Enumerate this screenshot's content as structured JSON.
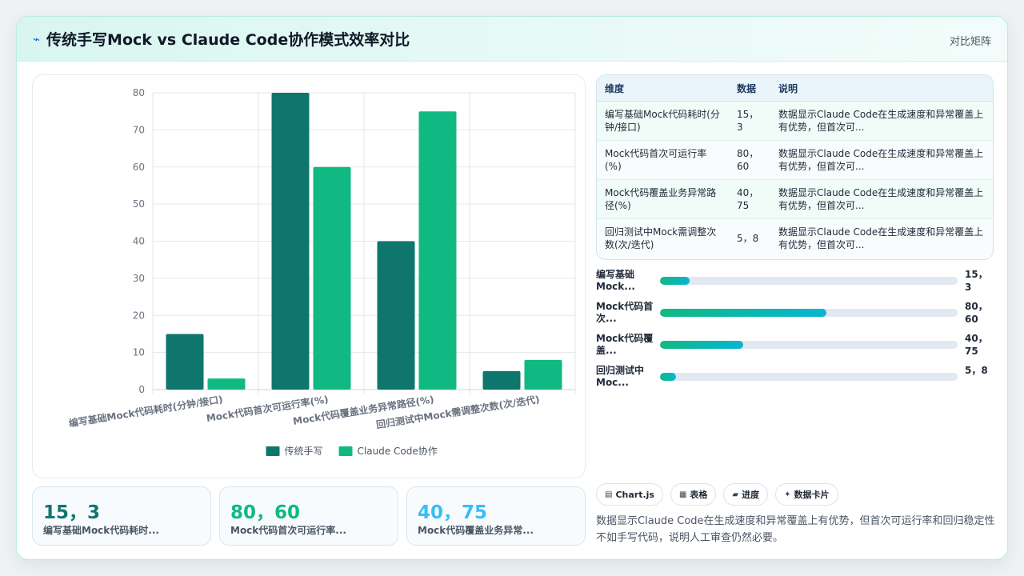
{
  "header": {
    "title": "传统手写Mock vs Claude Code协作模式效率对比",
    "right_label": "对比矩阵"
  },
  "chart_data": {
    "type": "bar",
    "categories": [
      "编写基础Mock代码耗时(分钟/接口)",
      "Mock代码首次可运行率(%)",
      "Mock代码覆盖业务异常路径(%)",
      "回归测试中Mock需调整次数(次/迭代)"
    ],
    "series": [
      {
        "name": "传统手写",
        "values": [
          15,
          80,
          40,
          5
        ],
        "color": "#0f766e"
      },
      {
        "name": "Claude Code协作",
        "values": [
          3,
          60,
          75,
          8
        ],
        "color": "#10b981"
      }
    ],
    "ylim": [
      0,
      80
    ],
    "yticks": [
      0,
      10,
      20,
      30,
      40,
      50,
      60,
      70,
      80
    ],
    "grid": true,
    "legend": "bottom"
  },
  "table": {
    "headers": [
      "维度",
      "数据",
      "说明"
    ],
    "rows": [
      {
        "dim": "编写基础Mock代码耗时(分钟/接口)",
        "val": "15，3",
        "desc": "数据显示Claude Code在生成速度和异常覆盖上有优势，但首次可..."
      },
      {
        "dim": "Mock代码首次可运行率(%)",
        "val": "80，60",
        "desc": "数据显示Claude Code在生成速度和异常覆盖上有优势，但首次可..."
      },
      {
        "dim": "Mock代码覆盖业务异常路径(%)",
        "val": "40，75",
        "desc": "数据显示Claude Code在生成速度和异常覆盖上有优势，但首次可..."
      },
      {
        "dim": "回归测试中Mock需调整次数(次/迭代)",
        "val": "5，8",
        "desc": "数据显示Claude Code在生成速度和异常覆盖上有优势，但首次可..."
      }
    ]
  },
  "progress": [
    {
      "label": "编写基础Mock...",
      "value": "15，3",
      "fill": 0.1
    },
    {
      "label": "Mock代码首次...",
      "value": "80，60",
      "fill": 0.56
    },
    {
      "label": "Mock代码覆盖...",
      "value": "40，75",
      "fill": 0.28
    },
    {
      "label": "回归测试中Moc...",
      "value": "5，8",
      "fill": 0.055
    }
  ],
  "stats": [
    {
      "value": "15，3",
      "label": "编写基础Mock代码耗时...",
      "color": "#0f766e"
    },
    {
      "value": "80，60",
      "label": "Mock代码首次可运行率...",
      "color": "#10b981"
    },
    {
      "value": "40，75",
      "label": "Mock代码覆盖业务异常...",
      "color": "#38bdf8"
    }
  ],
  "tags": [
    {
      "icon": "▤",
      "label": "Chart.js"
    },
    {
      "icon": "▦",
      "label": "表格"
    },
    {
      "icon": "▰",
      "label": "进度"
    },
    {
      "icon": "✦",
      "label": "数据卡片"
    }
  ],
  "note": "数据显示Claude Code在生成速度和异常覆盖上有优势，但首次可运行率和回归稳定性不如手写代码，说明人工审查仍然必要。"
}
